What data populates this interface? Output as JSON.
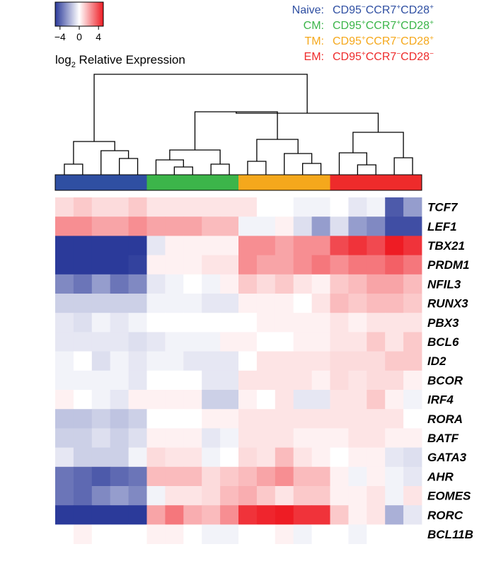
{
  "chart_data": {
    "type": "heatmap",
    "colorbar": {
      "low_color": "#2b3a9a",
      "mid_color": "#ffffff",
      "high_color": "#ee1c24",
      "range": [
        -5,
        5
      ],
      "ticks": [
        "−4",
        "0",
        "4"
      ],
      "tick_values": [
        -4,
        0,
        4
      ],
      "title_main": "log",
      "title_sub": "2",
      "title_rest": " Relative Expression"
    },
    "subsets": [
      {
        "name": "Naive:",
        "color": "#2f4fa2",
        "markers": [
          {
            "t": "CD95"
          },
          {
            "t": "−",
            "s": true
          },
          {
            "t": "CCR7"
          },
          {
            "t": "+",
            "s": true
          },
          {
            "t": "CD28"
          },
          {
            "t": "+",
            "s": true
          }
        ]
      },
      {
        "name": "CM:",
        "color": "#3cb54a",
        "markers": [
          {
            "t": "CD95"
          },
          {
            "t": "+",
            "s": true
          },
          {
            "t": "CCR7"
          },
          {
            "t": "+",
            "s": true
          },
          {
            "t": "CD28"
          },
          {
            "t": "+",
            "s": true
          }
        ]
      },
      {
        "name": "TM:",
        "color": "#f5a81c",
        "markers": [
          {
            "t": "CD95"
          },
          {
            "t": "+",
            "s": true
          },
          {
            "t": "CCR7"
          },
          {
            "t": "−",
            "s": true
          },
          {
            "t": "CD28"
          },
          {
            "t": "+",
            "s": true
          }
        ]
      },
      {
        "name": "EM:",
        "color": "#ee2b2b",
        "markers": [
          {
            "t": "CD95"
          },
          {
            "t": "+",
            "s": true
          },
          {
            "t": "CCR7"
          },
          {
            "t": "−",
            "s": true
          },
          {
            "t": "CD28"
          },
          {
            "t": "−",
            "s": true
          }
        ]
      }
    ],
    "column_groups": [
      0,
      0,
      0,
      0,
      0,
      1,
      1,
      1,
      1,
      1,
      2,
      2,
      2,
      2,
      2,
      3,
      3,
      3,
      3,
      3
    ],
    "genes": [
      "TCF7",
      "LEF1",
      "TBX21",
      "PRDM1",
      "NFIL3",
      "RUNX3",
      "PBX3",
      "BCL6",
      "ID2",
      "BCOR",
      "IRF4",
      "RORA",
      "BATF",
      "GATA3",
      "AHR",
      "EOMES",
      "RORC",
      "BCL11B"
    ],
    "values": [
      [
        0.8,
        1.2,
        0.8,
        0.8,
        1.2,
        0.6,
        0.6,
        0.6,
        0.6,
        0.6,
        0.6,
        0,
        0,
        -0.3,
        -0.3,
        0,
        -0.6,
        -0.3,
        -4.2,
        -2.5
      ],
      [
        2.5,
        2.5,
        2.0,
        2.0,
        2.5,
        2.0,
        2.0,
        2.0,
        1.5,
        1.5,
        -0.3,
        -0.3,
        0.3,
        -0.8,
        -2.5,
        -0.8,
        -2.5,
        -3.0,
        -4.5,
        -4.5
      ],
      [
        -5,
        -5,
        -5,
        -5,
        -5,
        -0.6,
        0.3,
        0.3,
        0.3,
        0.3,
        2.5,
        2.5,
        2.0,
        2.5,
        2.5,
        4.0,
        4.5,
        4.0,
        5,
        4.5
      ],
      [
        -5,
        -5,
        -5,
        -5,
        -4.8,
        0.3,
        0.3,
        0.3,
        0.6,
        0.6,
        2.5,
        2.0,
        2.0,
        2.5,
        3.0,
        2.5,
        3.0,
        3.0,
        3.5,
        3.0
      ],
      [
        -3.0,
        -3.5,
        -2.5,
        -3.5,
        -3.0,
        -0.6,
        -0.3,
        0,
        -0.3,
        0.3,
        1.2,
        0.8,
        1.2,
        0.6,
        0.3,
        1.2,
        1.5,
        2.0,
        2.0,
        1.5
      ],
      [
        -1.2,
        -1.2,
        -1.2,
        -1.2,
        -1.2,
        -0.3,
        -0.3,
        -0.3,
        -0.6,
        -0.6,
        0.3,
        0.3,
        0.3,
        0,
        0.6,
        1.5,
        1.2,
        1.5,
        1.5,
        1.2
      ],
      [
        -0.6,
        -0.8,
        -0.3,
        -0.6,
        -0.3,
        0,
        0,
        0,
        0,
        0,
        0,
        0.3,
        0.3,
        0.3,
        0.3,
        0.6,
        0.3,
        0.6,
        0.6,
        0.6
      ],
      [
        -0.6,
        -0.6,
        -0.6,
        -0.6,
        -0.8,
        -0.6,
        -0.3,
        -0.3,
        -0.3,
        0.3,
        0.3,
        0,
        0,
        0.3,
        0.3,
        0.6,
        0.6,
        1.2,
        0.6,
        1.2
      ],
      [
        -0.3,
        0,
        -0.8,
        -0.3,
        -0.6,
        -0.3,
        -0.3,
        -0.6,
        -0.6,
        -0.6,
        0,
        0.6,
        0.6,
        0.6,
        0.6,
        0.8,
        0.8,
        0.8,
        1.2,
        1.2
      ],
      [
        -0.3,
        -0.3,
        -0.3,
        -0.3,
        -0.6,
        0,
        0,
        0,
        -0.6,
        -0.6,
        0.6,
        0.6,
        0.6,
        0.6,
        0.3,
        0.8,
        0.6,
        0.8,
        0.8,
        0.3
      ],
      [
        0.3,
        0,
        -0.3,
        -0.6,
        0.3,
        0.3,
        0.3,
        0.3,
        -1.2,
        -1.2,
        0.3,
        0,
        0.6,
        -0.6,
        -0.6,
        0.6,
        0.6,
        1.2,
        0.3,
        -0.3
      ],
      [
        -1.5,
        -1.5,
        -1.2,
        -1.5,
        -1.2,
        0,
        0,
        0,
        0.3,
        0.3,
        0.6,
        0.6,
        0.6,
        0.6,
        0.6,
        0.6,
        0.6,
        0.6,
        0.6,
        0
      ],
      [
        -1.2,
        -1.2,
        -0.8,
        -1.2,
        -0.8,
        0.3,
        0.3,
        0.3,
        -0.6,
        -0.3,
        0.6,
        0.6,
        0.6,
        0.3,
        0.3,
        0.3,
        0.6,
        0.6,
        0.3,
        0.3
      ],
      [
        -0.6,
        -1.2,
        -1.2,
        -1.2,
        -0.3,
        0.8,
        0.6,
        0.6,
        -0.3,
        0,
        0.8,
        0.6,
        1.5,
        0.6,
        0.3,
        0,
        0.3,
        0.3,
        -0.6,
        -0.8
      ],
      [
        -3.5,
        -3.8,
        -4.2,
        -3.8,
        -3.5,
        1.5,
        1.5,
        1.5,
        0.8,
        1.2,
        1.5,
        2.0,
        2.5,
        1.5,
        1.5,
        0.3,
        -0.3,
        0.3,
        -0.3,
        -0.6
      ],
      [
        -3.5,
        -3.8,
        -3.0,
        -2.5,
        -3.0,
        -0.3,
        0.6,
        0.6,
        0.8,
        1.5,
        1.8,
        1.2,
        0.6,
        1.2,
        1.2,
        0.3,
        0.3,
        0.6,
        -0.3,
        0.6
      ],
      [
        -5,
        -5,
        -5,
        -5,
        -5,
        2.0,
        3.0,
        1.8,
        1.5,
        2.5,
        4.5,
        4.8,
        5,
        4.5,
        4.5,
        1.2,
        0.3,
        0.6,
        -2.0,
        -0.6
      ],
      [
        0,
        0.3,
        0,
        0,
        0,
        0.3,
        0.3,
        0,
        -0.3,
        -0.3,
        0,
        0,
        0.3,
        -0.3,
        0,
        0,
        -0.3,
        0,
        0,
        0
      ]
    ],
    "xlabel": "",
    "ylabel": ""
  }
}
